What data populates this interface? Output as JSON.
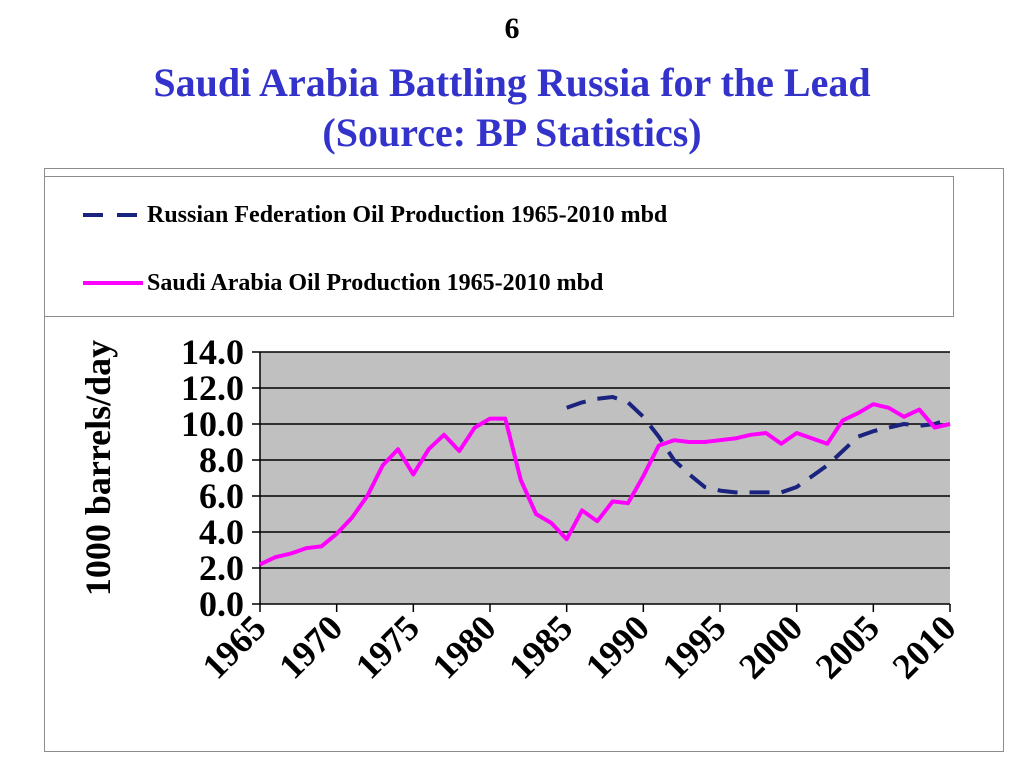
{
  "slide": {
    "number": "6",
    "title_line1": "Saudi Arabia Battling Russia for the Lead",
    "title_line2": "(Source: BP Statistics)",
    "title_color": "#3333cc"
  },
  "chart_data": {
    "type": "line",
    "title": "",
    "ylabel": "1000 barrels/day",
    "xlabel": "",
    "ylim": [
      0,
      14
    ],
    "xlim": [
      1965,
      2010
    ],
    "y_ticks": [
      "0.0",
      "2.0",
      "4.0",
      "6.0",
      "8.0",
      "10.0",
      "12.0",
      "14.0"
    ],
    "x_ticks": [
      "1965",
      "1970",
      "1975",
      "1980",
      "1985",
      "1990",
      "1995",
      "2000",
      "2005",
      "2010"
    ],
    "grid": "horizontal",
    "plot_background": "#c0c0c0",
    "legend_position": "top",
    "series": [
      {
        "name": "Russian Federation Oil Production 1965-2010 mbd",
        "color": "#1a237e",
        "style": "dashed",
        "x": [
          1985,
          1986,
          1987,
          1988,
          1989,
          1990,
          1991,
          1992,
          1993,
          1994,
          1995,
          1996,
          1997,
          1998,
          1999,
          2000,
          2001,
          2002,
          2003,
          2004,
          2005,
          2006,
          2007,
          2008,
          2009,
          2010
        ],
        "y": [
          10.9,
          11.2,
          11.4,
          11.5,
          11.2,
          10.4,
          9.3,
          8.0,
          7.2,
          6.5,
          6.3,
          6.2,
          6.2,
          6.2,
          6.2,
          6.5,
          7.1,
          7.7,
          8.5,
          9.3,
          9.6,
          9.8,
          10.0,
          9.9,
          10.0,
          10.3
        ]
      },
      {
        "name": "Saudi Arabia Oil Production 1965-2010 mbd",
        "color": "#ff00ff",
        "style": "solid",
        "x": [
          1965,
          1966,
          1967,
          1968,
          1969,
          1970,
          1971,
          1972,
          1973,
          1974,
          1975,
          1976,
          1977,
          1978,
          1979,
          1980,
          1981,
          1982,
          1983,
          1984,
          1985,
          1986,
          1987,
          1988,
          1989,
          1990,
          1991,
          1992,
          1993,
          1994,
          1995,
          1996,
          1997,
          1998,
          1999,
          2000,
          2001,
          2002,
          2003,
          2004,
          2005,
          2006,
          2007,
          2008,
          2009,
          2010
        ],
        "y": [
          2.2,
          2.6,
          2.8,
          3.1,
          3.2,
          3.9,
          4.8,
          6.0,
          7.7,
          8.6,
          7.2,
          8.6,
          9.4,
          8.5,
          9.8,
          10.3,
          10.3,
          6.9,
          5.0,
          4.5,
          3.6,
          5.2,
          4.6,
          5.7,
          5.6,
          7.1,
          8.8,
          9.1,
          9.0,
          9.0,
          9.1,
          9.2,
          9.4,
          9.5,
          8.9,
          9.5,
          9.2,
          8.9,
          10.2,
          10.6,
          11.1,
          10.9,
          10.4,
          10.8,
          9.8,
          10.0
        ]
      }
    ]
  }
}
